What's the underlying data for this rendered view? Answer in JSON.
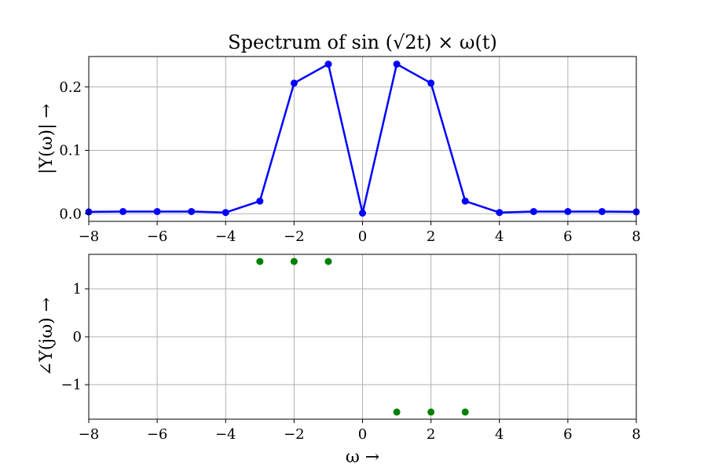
{
  "chart_data": [
    {
      "type": "line",
      "title": "Spectrum of sin (√2t) × ω(t)",
      "xlabel": "",
      "ylabel": "|Y(ω)| →",
      "xlim": [
        -8,
        8
      ],
      "ylim": [
        -0.012,
        0.248
      ],
      "xticks": [
        -8,
        -6,
        -4,
        -2,
        0,
        2,
        4,
        6,
        8
      ],
      "xtick_labels": [
        "−8",
        "−6",
        "−4",
        "−2",
        "0",
        "2",
        "4",
        "6",
        "8"
      ],
      "yticks": [
        0.0,
        0.1,
        0.2
      ],
      "ytick_labels": [
        "0.0",
        "0.1",
        "0.2"
      ],
      "grid": true,
      "color": "#0000ff",
      "marker": "circle",
      "x": [
        -8,
        -7,
        -6,
        -5,
        -4,
        -3,
        -2,
        -1,
        0,
        1,
        2,
        3,
        4,
        5,
        6,
        7,
        8
      ],
      "values": [
        0.003,
        0.0035,
        0.0035,
        0.0035,
        0.002,
        0.02,
        0.206,
        0.236,
        0.001,
        0.236,
        0.206,
        0.02,
        0.002,
        0.0035,
        0.0035,
        0.0035,
        0.003
      ]
    },
    {
      "type": "scatter",
      "title": "",
      "xlabel": "ω →",
      "ylabel": "∠Y(jω) →",
      "xlim": [
        -8,
        8
      ],
      "ylim": [
        -1.72,
        1.72
      ],
      "xticks": [
        -8,
        -6,
        -4,
        -2,
        0,
        2,
        4,
        6,
        8
      ],
      "xtick_labels": [
        "−8",
        "−6",
        "−4",
        "−2",
        "0",
        "2",
        "4",
        "6",
        "8"
      ],
      "yticks": [
        -1,
        0,
        1
      ],
      "ytick_labels": [
        "−1",
        "0",
        "1"
      ],
      "grid": true,
      "color": "#008000",
      "marker": "circle",
      "x": [
        -3,
        -2,
        -1,
        1,
        2,
        3
      ],
      "values": [
        1.5708,
        1.5708,
        1.5708,
        -1.5708,
        -1.5708,
        -1.5708
      ]
    }
  ]
}
